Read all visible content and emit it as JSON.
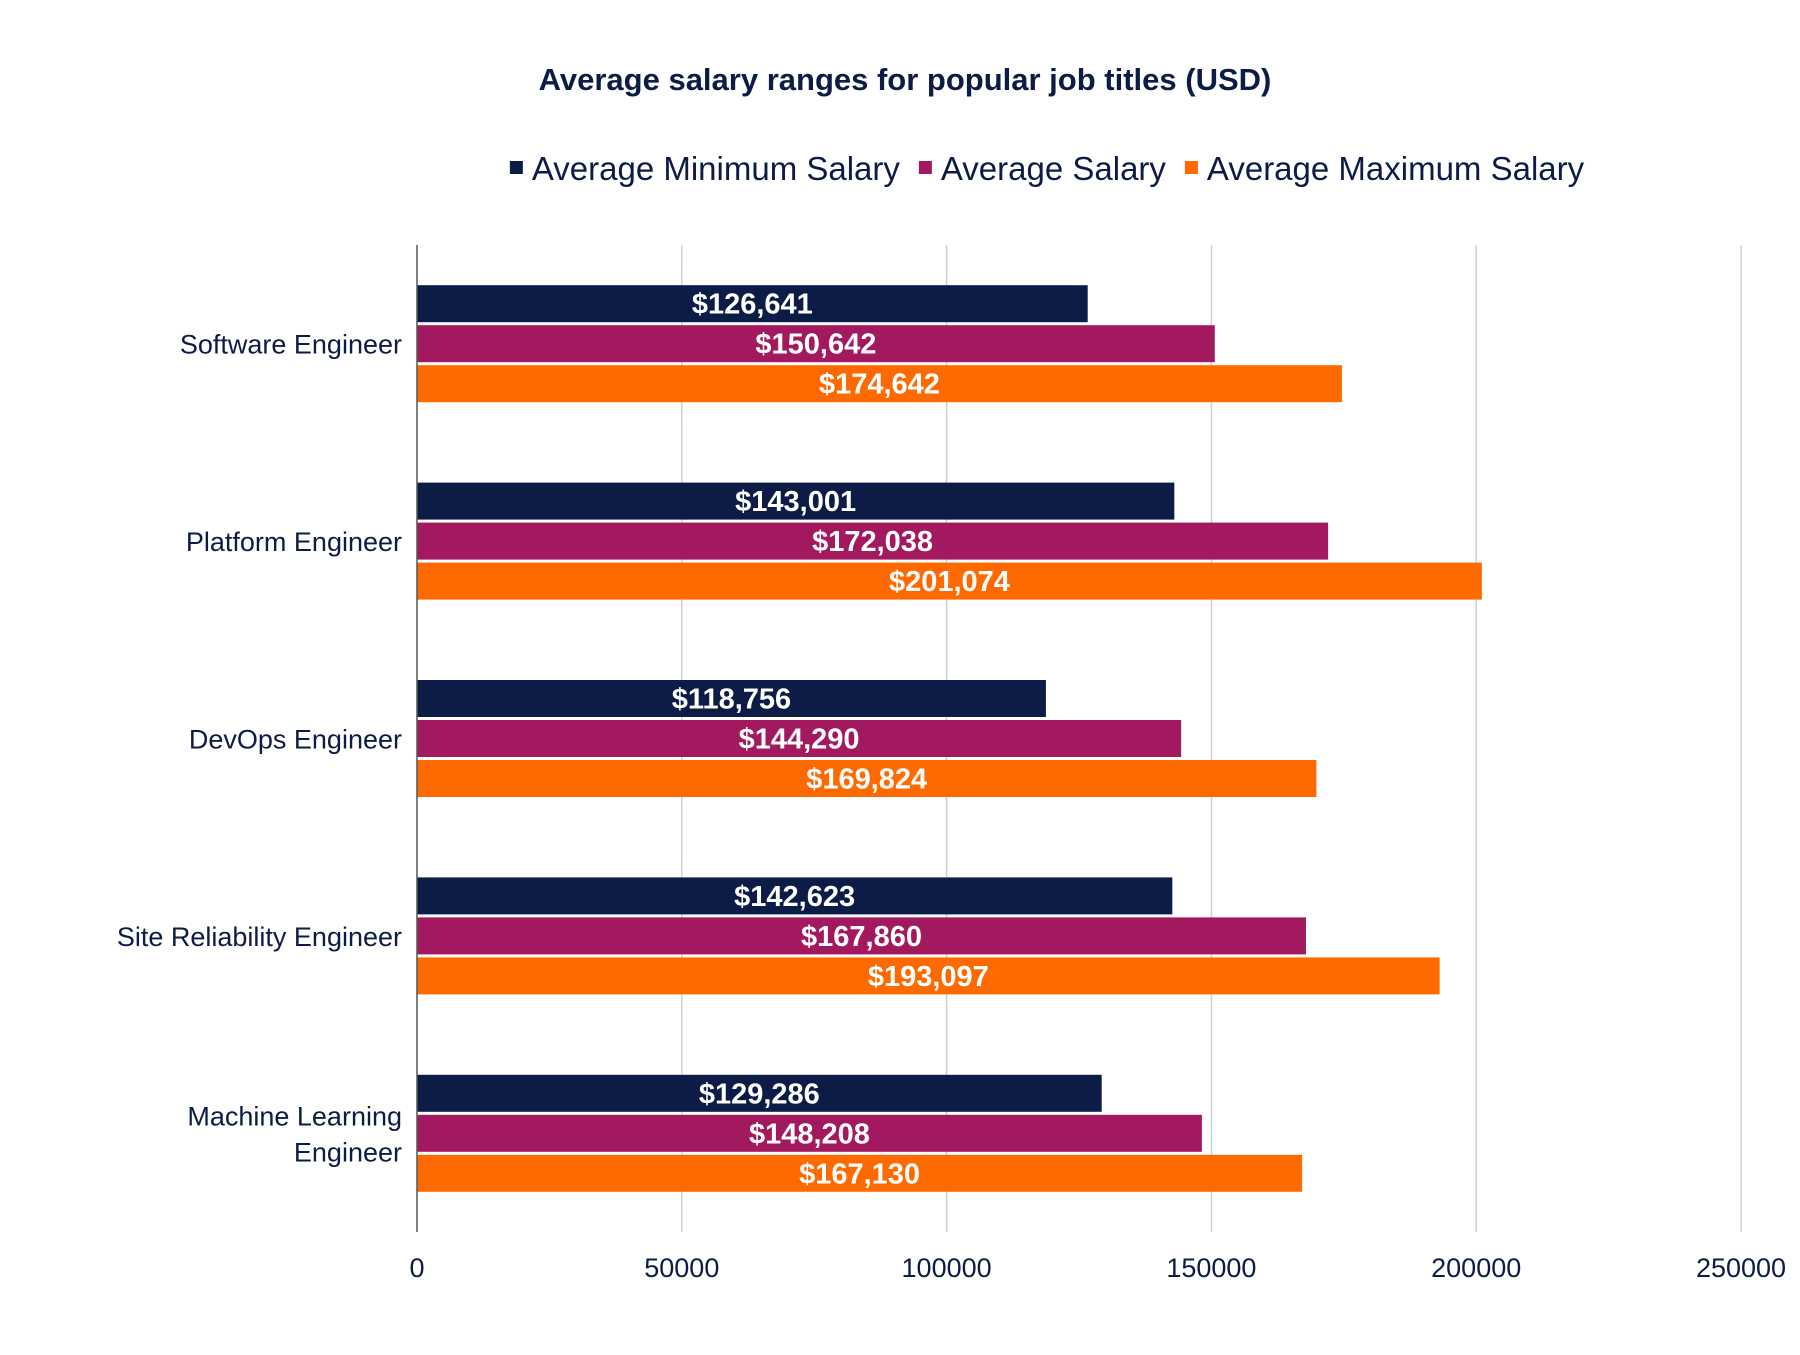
{
  "chart_data": {
    "type": "bar",
    "orientation": "horizontal",
    "title": "Average salary ranges for popular job titles (USD)",
    "xlabel": "",
    "ylabel": "",
    "xlim": [
      0,
      250000
    ],
    "xticks": [
      0,
      50000,
      100000,
      150000,
      200000,
      250000
    ],
    "xtick_labels": [
      "0",
      "50000",
      "100000",
      "150000",
      "200000",
      "250000"
    ],
    "grid": "vertical",
    "legend_position": "top",
    "categories": [
      "Software Engineer",
      "Platform Engineer",
      "DevOps Engineer",
      "Site Reliability Engineer",
      "Machine Learning Engineer"
    ],
    "category_label_lines": [
      [
        "Software Engineer"
      ],
      [
        "Platform Engineer"
      ],
      [
        "DevOps Engineer"
      ],
      [
        "Site Reliability Engineer"
      ],
      [
        "Machine Learning",
        "Engineer"
      ]
    ],
    "series": [
      {
        "name": "Average Minimum Salary",
        "color": "#0d1b47",
        "values": [
          126641,
          143001,
          118756,
          142623,
          129286
        ],
        "labels": [
          "$126,641",
          "$143,001",
          "$118,756",
          "$142,623",
          "$129,286"
        ]
      },
      {
        "name": "Average Salary",
        "color": "#a3195f",
        "values": [
          150642,
          172038,
          144290,
          167860,
          148208
        ],
        "labels": [
          "$150,642",
          "$172,038",
          "$144,290",
          "$167,860",
          "$148,208"
        ]
      },
      {
        "name": "Average Maximum Salary",
        "color": "#ff6a00",
        "values": [
          174642,
          201074,
          169824,
          193097,
          167130
        ],
        "labels": [
          "$174,642",
          "$201,074",
          "$169,824",
          "$193,097",
          "$167,130"
        ]
      }
    ]
  },
  "colors": {
    "title": "#0d1b47",
    "axis_text": "#0d1b47",
    "grid": "#d0d0d0",
    "axis_line": "#555555",
    "data_label": "#ffffff"
  }
}
